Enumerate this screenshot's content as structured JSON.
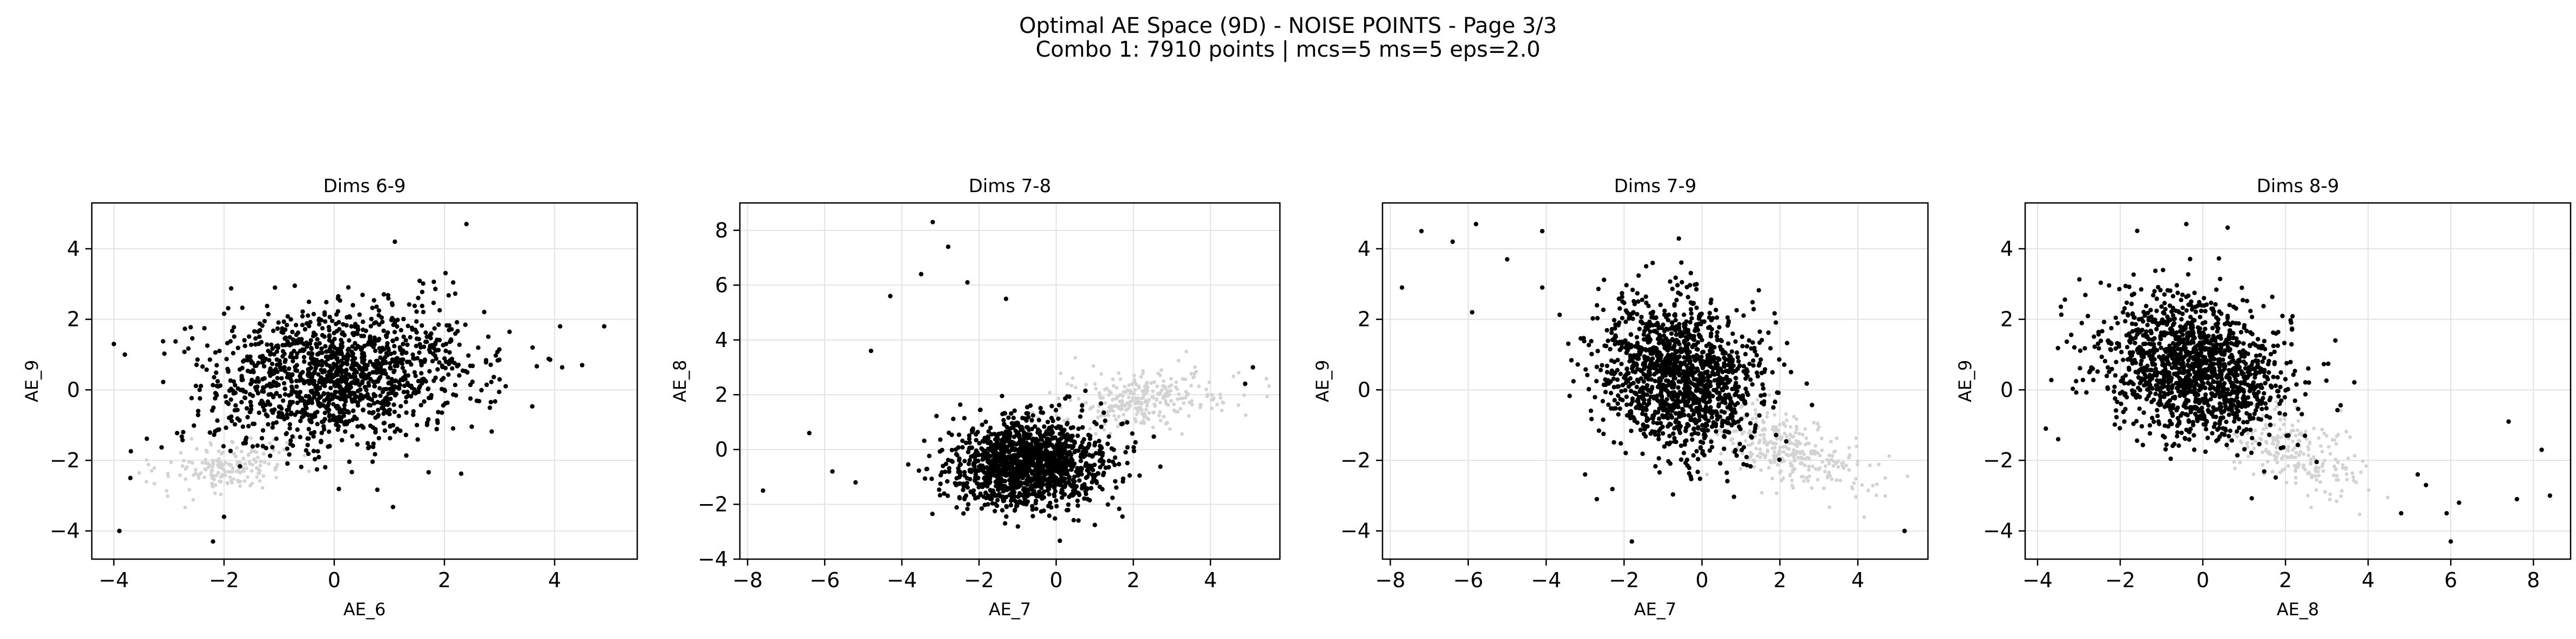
{
  "figure": {
    "title_line1": "Optimal AE Space (9D) - NOISE POINTS - Page 3/3",
    "title_line2": "Combo 1: 7910 points | mcs=5 ms=5 eps=2.0"
  },
  "colors": {
    "noise": "#000000",
    "clustered": "#d3d3d3",
    "grid": "#e3e3e3",
    "axis": "#000000"
  },
  "chart_data": [
    {
      "type": "scatter",
      "title": "Dims 6-9",
      "xlabel": "AE_6",
      "ylabel": "AE_9",
      "xlim": [
        -4.4,
        5.5
      ],
      "ylim": [
        -4.8,
        5.3
      ],
      "xticks": [
        -4,
        -2,
        0,
        2,
        4
      ],
      "yticks": [
        -4,
        -2,
        0,
        2,
        4
      ],
      "grid": true,
      "series": [
        {
          "role": "noise",
          "center": [
            0.1,
            0.4
          ],
          "spread": [
            1.2,
            1.0
          ],
          "corr": 0.2,
          "count": 1400,
          "outliers": [
            [
              -4.0,
              1.3
            ],
            [
              -3.8,
              1.0
            ],
            [
              -3.7,
              -2.5
            ],
            [
              -3.9,
              -4.0
            ],
            [
              -2.2,
              -4.3
            ],
            [
              4.1,
              1.8
            ],
            [
              4.5,
              0.7
            ],
            [
              4.9,
              1.8
            ],
            [
              2.4,
              4.7
            ],
            [
              1.1,
              4.2
            ],
            [
              -2.0,
              -3.6
            ],
            [
              3.6,
              1.2
            ]
          ]
        },
        {
          "role": "clustered",
          "center": [
            -1.9,
            -2.2
          ],
          "spread": [
            0.55,
            0.35
          ],
          "corr": 0.3,
          "count": 180,
          "outliers": []
        }
      ]
    },
    {
      "type": "scatter",
      "title": "Dims 7-8",
      "xlabel": "AE_7",
      "ylabel": "AE_8",
      "xlim": [
        -8.2,
        5.8
      ],
      "ylim": [
        -4.0,
        9.0
      ],
      "xticks": [
        -8,
        -6,
        -4,
        -2,
        0,
        2,
        4
      ],
      "yticks": [
        -4,
        -2,
        0,
        2,
        4,
        6,
        8
      ],
      "grid": true,
      "series": [
        {
          "role": "noise",
          "center": [
            -0.7,
            -0.5
          ],
          "spread": [
            1.0,
            0.8
          ],
          "corr": 0.1,
          "count": 1400,
          "outliers": [
            [
              -7.6,
              -1.5
            ],
            [
              -3.2,
              8.3
            ],
            [
              -2.8,
              7.4
            ],
            [
              -2.3,
              6.1
            ],
            [
              -3.5,
              6.4
            ],
            [
              -4.3,
              5.6
            ],
            [
              -6.4,
              0.6
            ],
            [
              -5.8,
              -0.8
            ],
            [
              -5.2,
              -1.2
            ],
            [
              5.1,
              3.0
            ],
            [
              4.9,
              2.4
            ],
            [
              -4.8,
              3.6
            ],
            [
              -1.3,
              5.5
            ]
          ]
        },
        {
          "role": "clustered",
          "center": [
            2.3,
            1.8
          ],
          "spread": [
            1.1,
            0.55
          ],
          "corr": 0.3,
          "count": 300,
          "outliers": []
        }
      ]
    },
    {
      "type": "scatter",
      "title": "Dims 7-9",
      "xlabel": "AE_7",
      "ylabel": "AE_9",
      "xlim": [
        -8.2,
        5.8
      ],
      "ylim": [
        -4.8,
        5.3
      ],
      "xticks": [
        -8,
        -6,
        -4,
        -2,
        0,
        2,
        4
      ],
      "yticks": [
        -4,
        -2,
        0,
        2,
        4
      ],
      "grid": true,
      "series": [
        {
          "role": "noise",
          "center": [
            -0.6,
            0.4
          ],
          "spread": [
            1.0,
            1.1
          ],
          "corr": -0.2,
          "count": 1400,
          "outliers": [
            [
              -7.7,
              2.9
            ],
            [
              -7.2,
              4.5
            ],
            [
              -6.4,
              4.2
            ],
            [
              -5.8,
              4.7
            ],
            [
              -5.9,
              2.2
            ],
            [
              -5.0,
              3.7
            ],
            [
              -4.1,
              4.5
            ],
            [
              5.2,
              -4.0
            ],
            [
              -3.0,
              -2.4
            ],
            [
              -2.7,
              -3.1
            ],
            [
              -4.1,
              2.9
            ],
            [
              -1.8,
              -4.3
            ]
          ]
        },
        {
          "role": "clustered",
          "center": [
            2.2,
            -1.7
          ],
          "spread": [
            1.0,
            0.6
          ],
          "corr": -0.6,
          "count": 320,
          "outliers": []
        }
      ]
    },
    {
      "type": "scatter",
      "title": "Dims 8-9",
      "xlabel": "AE_8",
      "ylabel": "AE_9",
      "xlim": [
        -4.3,
        8.9
      ],
      "ylim": [
        -4.8,
        5.3
      ],
      "xticks": [
        -4,
        -2,
        0,
        2,
        4,
        6,
        8
      ],
      "yticks": [
        -4,
        -2,
        0,
        2,
        4
      ],
      "grid": true,
      "series": [
        {
          "role": "noise",
          "center": [
            -0.2,
            0.6
          ],
          "spread": [
            1.1,
            1.0
          ],
          "corr": -0.2,
          "count": 1400,
          "outliers": [
            [
              -3.8,
              -1.1
            ],
            [
              -3.5,
              -1.4
            ],
            [
              7.4,
              -0.9
            ],
            [
              8.2,
              -1.7
            ],
            [
              7.6,
              -3.1
            ],
            [
              8.4,
              -3.0
            ],
            [
              6.2,
              -3.2
            ],
            [
              5.9,
              -3.5
            ],
            [
              6.0,
              -4.3
            ],
            [
              4.8,
              -3.5
            ],
            [
              0.6,
              4.6
            ],
            [
              -0.4,
              4.7
            ],
            [
              5.4,
              -2.7
            ],
            [
              5.2,
              -2.4
            ]
          ]
        },
        {
          "role": "clustered",
          "center": [
            2.2,
            -1.8
          ],
          "spread": [
            0.9,
            0.6
          ],
          "corr": -0.5,
          "count": 220,
          "outliers": []
        }
      ]
    }
  ]
}
